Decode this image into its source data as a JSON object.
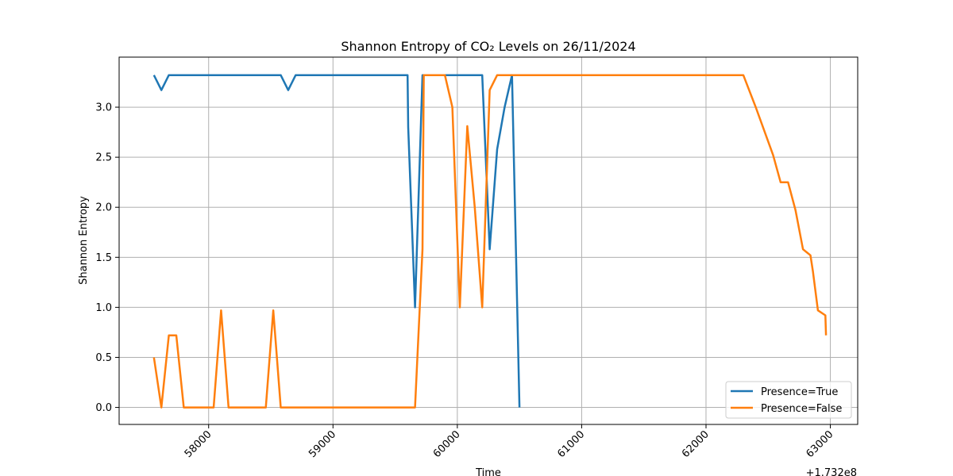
{
  "chart_data": {
    "type": "line",
    "title": "Shannon Entropy of CO₂ Levels on 26/11/2024",
    "xlabel": "Time",
    "ylabel": "Shannon Entropy",
    "x_offset_label": "+1.732e8",
    "xlim": [
      57280,
      63220
    ],
    "ylim": [
      -0.17,
      3.5
    ],
    "x_ticks": [
      58000,
      59000,
      60000,
      61000,
      62000,
      63000
    ],
    "x_tick_labels": [
      "58000",
      "59000",
      "60000",
      "61000",
      "62000",
      "63000"
    ],
    "y_ticks": [
      0.0,
      0.5,
      1.0,
      1.5,
      2.0,
      2.5,
      3.0
    ],
    "y_tick_labels": [
      "0.0",
      "0.5",
      "1.0",
      "1.5",
      "2.0",
      "2.5",
      "3.0"
    ],
    "grid": true,
    "legend_position": "lower-right",
    "colors": {
      "true": "#1f77b4",
      "false": "#ff7f0e",
      "grid": "#b0b0b0"
    },
    "series": [
      {
        "name": "Presence=True",
        "color": "#1f77b4",
        "x": [
          57560,
          57620,
          57680,
          57740,
          58000,
          58300,
          58580,
          58640,
          58700,
          59000,
          59300,
          59600,
          59605,
          59660,
          59720,
          60000,
          60200,
          60260,
          60320,
          60380,
          60440,
          60500
        ],
        "y": [
          3.32,
          3.17,
          3.32,
          3.32,
          3.32,
          3.32,
          3.32,
          3.17,
          3.32,
          3.32,
          3.32,
          3.32,
          2.8,
          1.0,
          3.32,
          3.32,
          3.32,
          1.58,
          2.58,
          3.0,
          3.32,
          0.0
        ]
      },
      {
        "name": "Presence=False",
        "color": "#ff7f0e",
        "x": [
          57560,
          57620,
          57680,
          57740,
          57800,
          58040,
          58100,
          58160,
          58460,
          58520,
          58580,
          58640,
          58940,
          59300,
          59660,
          59720,
          59730,
          59780,
          59900,
          59960,
          60020,
          60080,
          60140,
          60200,
          60260,
          60320,
          60400,
          60500,
          61000,
          61500,
          62000,
          62300,
          62400,
          62540,
          62600,
          62660,
          62720,
          62780,
          62840,
          62860,
          62900,
          62960,
          62965
        ],
        "y": [
          0.5,
          0.0,
          0.72,
          0.72,
          0.0,
          0.0,
          0.97,
          0.0,
          0.0,
          0.97,
          0.0,
          0.0,
          0.0,
          0.0,
          0.0,
          1.58,
          3.32,
          3.32,
          3.32,
          3.0,
          1.0,
          2.81,
          2.0,
          1.0,
          3.17,
          3.32,
          3.32,
          3.32,
          3.32,
          3.32,
          3.32,
          3.32,
          3.0,
          2.52,
          2.25,
          2.25,
          1.97,
          1.58,
          1.52,
          1.36,
          0.97,
          0.92,
          0.72
        ]
      }
    ]
  }
}
